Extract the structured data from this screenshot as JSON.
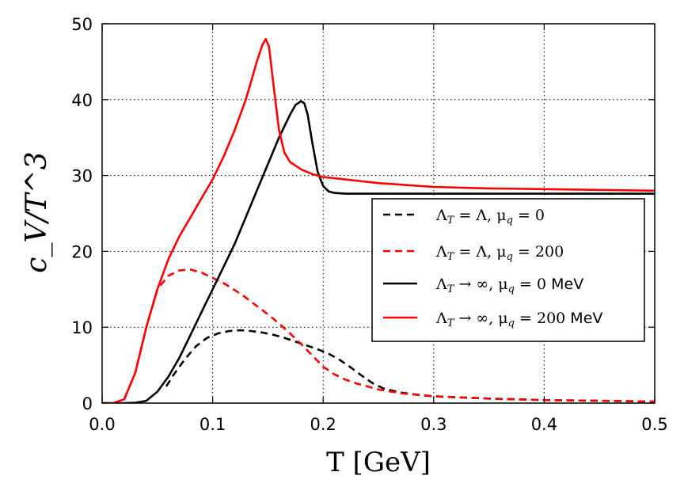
{
  "chart_data": {
    "type": "line",
    "title": "",
    "xlabel": "T [GeV]",
    "ylabel": "c_V/T^3",
    "xlim": [
      0.0,
      0.5
    ],
    "ylim": [
      0,
      50
    ],
    "grid": true,
    "legend_position": "right-middle",
    "x_ticks": [
      0.0,
      0.1,
      0.2,
      0.3,
      0.4,
      0.5
    ],
    "x_tick_labels": [
      "0.0",
      "0.1",
      "0.2",
      "0.3",
      "0.4",
      "0.5"
    ],
    "y_ticks": [
      0,
      10,
      20,
      30,
      40,
      50
    ],
    "y_tick_labels": [
      "0",
      "10",
      "20",
      "30",
      "40",
      "50"
    ],
    "series": [
      {
        "name": "Λ_T = Λ, μ_q = 0",
        "label_math": "Λ",
        "label_sub1": "T",
        "label_mid": " = Λ, μ",
        "label_sub2": "q",
        "label_end": " = 0",
        "label_unit": "",
        "color": "#000000",
        "dashed": true,
        "x": [
          0.058,
          0.065,
          0.075,
          0.085,
          0.095,
          0.105,
          0.115,
          0.125,
          0.135,
          0.145,
          0.155,
          0.165,
          0.175,
          0.185,
          0.195,
          0.205,
          0.215,
          0.225,
          0.235,
          0.245,
          0.255,
          0.27,
          0.285,
          0.3,
          0.35,
          0.4,
          0.45,
          0.5
        ],
        "y": [
          2.2,
          3.8,
          5.8,
          7.5,
          8.6,
          9.2,
          9.5,
          9.6,
          9.5,
          9.3,
          9.0,
          8.6,
          8.1,
          7.6,
          7.1,
          6.5,
          5.7,
          4.7,
          3.6,
          2.6,
          1.9,
          1.4,
          1.1,
          0.9,
          0.6,
          0.4,
          0.3,
          0.2
        ]
      },
      {
        "name": "Λ_T = Λ, μ_q = 200",
        "label_math": "Λ",
        "label_sub1": "T",
        "label_mid": " = Λ, μ",
        "label_sub2": "q",
        "label_end": " = 200",
        "label_unit": "",
        "color": "#ff0000",
        "dashed": true,
        "x": [
          0.0,
          0.01,
          0.02,
          0.03,
          0.04,
          0.05,
          0.06,
          0.07,
          0.08,
          0.09,
          0.1,
          0.11,
          0.12,
          0.13,
          0.14,
          0.15,
          0.16,
          0.17,
          0.18,
          0.19,
          0.2,
          0.21,
          0.22,
          0.23,
          0.24,
          0.25,
          0.27,
          0.3,
          0.35,
          0.4,
          0.45,
          0.5
        ],
        "y": [
          0.0,
          0.0,
          0.5,
          4.0,
          10.0,
          15.0,
          16.8,
          17.5,
          17.6,
          17.2,
          16.5,
          15.8,
          14.9,
          13.9,
          12.8,
          11.7,
          10.5,
          9.2,
          7.8,
          6.3,
          4.8,
          3.8,
          3.1,
          2.6,
          2.2,
          1.8,
          1.3,
          0.9,
          0.6,
          0.4,
          0.3,
          0.2
        ]
      },
      {
        "name": "Λ_T → ∞, μ_q = 0 MeV",
        "label_math": "Λ",
        "label_sub1": "T",
        "label_mid": " → ∞, μ",
        "label_sub2": "q",
        "label_end": " = 0",
        "label_unit": " MeV",
        "color": "#000000",
        "dashed": false,
        "x": [
          0.0,
          0.02,
          0.03,
          0.04,
          0.05,
          0.06,
          0.07,
          0.08,
          0.09,
          0.1,
          0.11,
          0.12,
          0.13,
          0.14,
          0.15,
          0.16,
          0.17,
          0.175,
          0.18,
          0.183,
          0.186,
          0.19,
          0.195,
          0.2,
          0.205,
          0.21,
          0.22,
          0.25,
          0.3,
          0.35,
          0.4,
          0.45,
          0.5
        ],
        "y": [
          0.0,
          0.0,
          0.05,
          0.3,
          1.5,
          3.5,
          6.0,
          9.0,
          12.0,
          15.0,
          18.0,
          21.0,
          24.5,
          28.0,
          31.5,
          35.0,
          38.0,
          39.3,
          39.8,
          39.5,
          38.0,
          34.5,
          30.5,
          28.6,
          27.9,
          27.7,
          27.6,
          27.6,
          27.6,
          27.6,
          27.6,
          27.6,
          27.6
        ]
      },
      {
        "name": "Λ_T → ∞, μ_q = 200 MeV",
        "label_math": "Λ",
        "label_sub1": "T",
        "label_mid": " → ∞, μ",
        "label_sub2": "q",
        "label_end": " = 200",
        "label_unit": " MeV",
        "color": "#ff0000",
        "dashed": false,
        "x": [
          0.0,
          0.01,
          0.02,
          0.03,
          0.04,
          0.05,
          0.06,
          0.07,
          0.08,
          0.09,
          0.1,
          0.11,
          0.12,
          0.13,
          0.135,
          0.14,
          0.145,
          0.148,
          0.151,
          0.155,
          0.16,
          0.165,
          0.17,
          0.18,
          0.19,
          0.2,
          0.25,
          0.3,
          0.35,
          0.4,
          0.45,
          0.5
        ],
        "y": [
          0.0,
          0.0,
          0.5,
          4.0,
          10.0,
          15.0,
          19.0,
          22.0,
          24.5,
          27.0,
          29.5,
          32.5,
          36.0,
          40.0,
          42.5,
          45.0,
          47.2,
          48.0,
          47.0,
          42.0,
          36.0,
          33.0,
          31.8,
          30.8,
          30.2,
          29.8,
          29.0,
          28.5,
          28.3,
          28.2,
          28.1,
          28.0
        ]
      }
    ]
  }
}
